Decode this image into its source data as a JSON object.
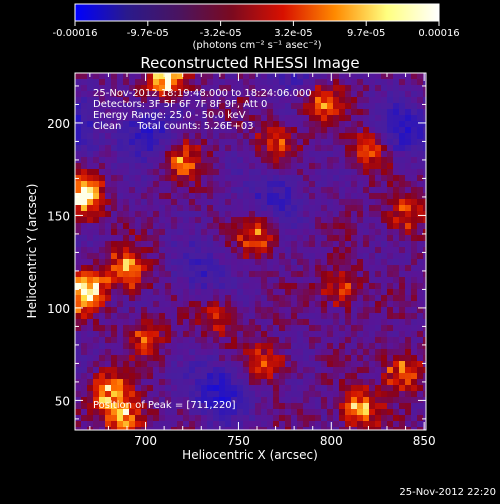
{
  "chart_data": {
    "type": "heatmap",
    "title": "Reconstructed RHESSI Image",
    "xlabel": "Heliocentric X (arcsec)",
    "ylabel": "Heliocentric Y (arcsec)",
    "xlim": [
      662,
      851
    ],
    "ylim": [
      34,
      227
    ],
    "xticks": [
      700,
      750,
      800,
      850
    ],
    "yticks": [
      50,
      100,
      150,
      200
    ],
    "colorbar": {
      "ticks": [
        "-0.00016",
        "-9.7e-05",
        "-3.2e-05",
        "3.2e-05",
        "9.7e-05",
        "0.00016"
      ],
      "unit_label": "(photons cm⁻² s⁻¹ asec⁻²)",
      "colors": [
        "#0000ff",
        "#2a1a8c",
        "#4a1460",
        "#7a0a20",
        "#d81000",
        "#ff8a00",
        "#ffff80",
        "#ffffff"
      ]
    },
    "annotations": [
      "25-Nov-2012 18:19:48.000 to 18:24:06.000",
      "Detectors: 3F 5F 6F 7F 8F 9F, Att 0",
      "Energy Range: 25.0 - 50.0 keV",
      "Clean     Total counts: 5.26E+03"
    ],
    "peak_label": "Position of Peak = [711,220]",
    "peak": [
      711,
      220
    ],
    "timestamp": "25-Nov-2012 22:20",
    "grid": false
  }
}
